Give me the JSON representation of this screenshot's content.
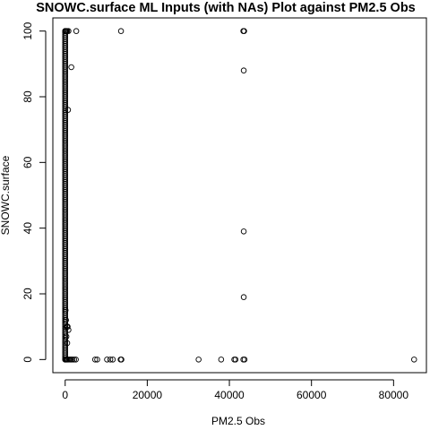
{
  "chart_data": {
    "type": "scatter",
    "title": "SNOWC.surface ML Inputs (with NAs) Plot against PM2.5 Obs",
    "xlabel": "PM2.5 Obs",
    "ylabel": "SNOWC.surface",
    "xlim": [
      -3000,
      88000
    ],
    "ylim": [
      -4,
      104
    ],
    "x_ticks": [
      0,
      20000,
      40000,
      60000,
      80000
    ],
    "y_ticks": [
      0,
      20,
      40,
      60,
      80,
      100
    ],
    "grid": false,
    "marker": "open-circle",
    "colors": {
      "points": "#000000",
      "frame": "#000000",
      "background": "#ffffff"
    },
    "series": [
      {
        "points": [
          [
            0,
            0
          ],
          [
            120,
            0
          ],
          [
            250,
            0
          ],
          [
            400,
            0
          ],
          [
            600,
            0
          ],
          [
            900,
            0
          ],
          [
            1200,
            0
          ],
          [
            1500,
            0
          ],
          [
            1800,
            0
          ],
          [
            2200,
            0
          ],
          [
            2600,
            0
          ],
          [
            7300,
            0
          ],
          [
            7800,
            0
          ],
          [
            10200,
            0
          ],
          [
            11000,
            0
          ],
          [
            11600,
            0
          ],
          [
            13500,
            0
          ],
          [
            13700,
            0
          ],
          [
            32500,
            0
          ],
          [
            38000,
            0
          ],
          [
            41200,
            0
          ],
          [
            41500,
            0
          ],
          [
            43400,
            0
          ],
          [
            43700,
            0
          ],
          [
            85000,
            0
          ],
          [
            0,
            100
          ],
          [
            150,
            100
          ],
          [
            300,
            100
          ],
          [
            500,
            100
          ],
          [
            800,
            100
          ],
          [
            2700,
            100
          ],
          [
            13600,
            100
          ],
          [
            43400,
            100
          ],
          [
            43600,
            100
          ],
          [
            1500,
            89
          ],
          [
            43500,
            88
          ],
          [
            700,
            76
          ],
          [
            43500,
            39
          ],
          [
            43500,
            19
          ],
          [
            400,
            10
          ],
          [
            600,
            10
          ],
          [
            800,
            9
          ],
          [
            200,
            12
          ],
          [
            100,
            15
          ],
          [
            300,
            7
          ],
          [
            500,
            5
          ]
        ]
      }
    ]
  }
}
